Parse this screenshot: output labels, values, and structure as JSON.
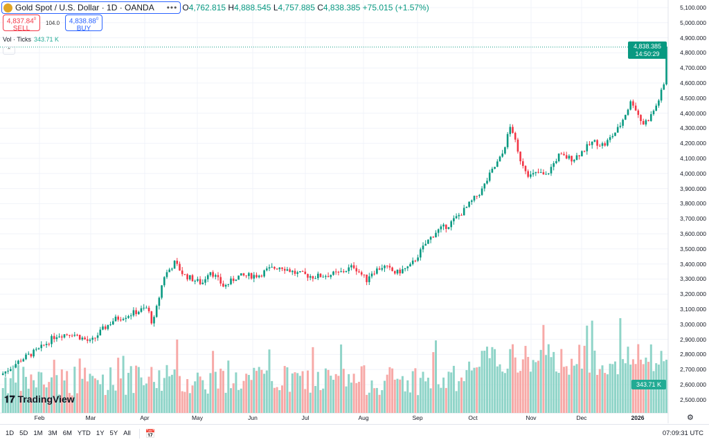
{
  "header": {
    "symbol": "Gold Spot / U.S. Dollar · 1D · OANDA",
    "open_label": "O",
    "open": "4,762.815",
    "high_label": "H",
    "high": "4,888.545",
    "low_label": "L",
    "low": "4,757.885",
    "close_label": "C",
    "close": "4,838.385",
    "change": "+75.015 (+1.57%)",
    "more": "•••"
  },
  "trade": {
    "sell_price": "4,837.84",
    "sell_sup": "0",
    "sell_label": "SELL",
    "spread": "104.0",
    "buy_price": "4,838.88",
    "buy_sup": "0",
    "buy_label": "BUY"
  },
  "volume_indicator": {
    "label": "Vol · Ticks",
    "value": "343.71 K"
  },
  "price_tag": {
    "price": "4,838.385",
    "countdown": "14:50:29"
  },
  "logo": "TradingView",
  "toolbar": {
    "ranges": [
      "1D",
      "5D",
      "1M",
      "3M",
      "6M",
      "YTD",
      "1Y",
      "5Y",
      "All"
    ],
    "time": "07:09:31 UTC"
  },
  "colors": {
    "up": "#089981",
    "down": "#f23645",
    "vol_up": "#8fd4c8",
    "vol_down": "#f7a9a7"
  },
  "chart_data": {
    "type": "candlestick",
    "y_ticks": [
      "5,100.000",
      "5,000.000",
      "4,900.000",
      "4,800.000",
      "4,700.000",
      "4,600.000",
      "4,500.000",
      "4,400.000",
      "4,300.000",
      "4,200.000",
      "4,100.000",
      "4,000.000",
      "3,900.000",
      "3,800.000",
      "3,700.000",
      "3,600.000",
      "3,500.000",
      "3,400.000",
      "3,300.000",
      "3,200.000",
      "3,100.000",
      "3,000.000",
      "2,900.000",
      "2,800.000",
      "2,700.000",
      "2,600.000",
      "2,500.000"
    ],
    "ylim": [
      2500,
      5100
    ],
    "x_ticks": [
      "Feb",
      "Mar",
      "Apr",
      "May",
      "Jun",
      "Jul",
      "Aug",
      "Sep",
      "Oct",
      "Nov",
      "Dec",
      "2026"
    ],
    "grid": true,
    "approx_closes": [
      [
        "2025-01-12",
        2674
      ],
      [
        "2025-01-22",
        2766
      ],
      [
        "2025-02-01",
        2835
      ],
      [
        "2025-02-10",
        2927
      ],
      [
        "2025-02-19",
        2940
      ],
      [
        "2025-03-01",
        2880
      ],
      [
        "2025-03-07",
        2959
      ],
      [
        "2025-03-14",
        3032
      ],
      [
        "2025-03-22",
        3064
      ],
      [
        "2025-04-01",
        3110
      ],
      [
        "2025-04-04",
        2995
      ],
      [
        "2025-04-10",
        3316
      ],
      [
        "2025-04-16",
        3408
      ],
      [
        "2025-04-21",
        3326
      ],
      [
        "2025-05-01",
        3270
      ],
      [
        "2025-05-05",
        3362
      ],
      [
        "2025-05-13",
        3248
      ],
      [
        "2025-05-20",
        3316
      ],
      [
        "2025-06-01",
        3326
      ],
      [
        "2025-06-06",
        3362
      ],
      [
        "2025-06-13",
        3385
      ],
      [
        "2025-06-21",
        3339
      ],
      [
        "2025-07-01",
        3316
      ],
      [
        "2025-07-08",
        3326
      ],
      [
        "2025-07-15",
        3339
      ],
      [
        "2025-07-23",
        3385
      ],
      [
        "2025-07-30",
        3294
      ],
      [
        "2025-08-01",
        3339
      ],
      [
        "2025-08-08",
        3385
      ],
      [
        "2025-08-15",
        3339
      ],
      [
        "2025-08-23",
        3385
      ],
      [
        "2025-09-01",
        3546
      ],
      [
        "2025-09-06",
        3615
      ],
      [
        "2025-09-13",
        3661
      ],
      [
        "2025-09-21",
        3752
      ],
      [
        "2025-10-01",
        3890
      ],
      [
        "2025-10-06",
        4005
      ],
      [
        "2025-10-12",
        4119
      ],
      [
        "2025-10-17",
        4326
      ],
      [
        "2025-10-21",
        4119
      ],
      [
        "2025-10-27",
        3982
      ],
      [
        "2025-11-01",
        4005
      ],
      [
        "2025-11-05",
        3982
      ],
      [
        "2025-11-12",
        4119
      ],
      [
        "2025-11-20",
        4096
      ],
      [
        "2025-12-01",
        4211
      ],
      [
        "2025-12-07",
        4188
      ],
      [
        "2025-12-15",
        4303
      ],
      [
        "2025-12-22",
        4486
      ],
      [
        "2025-12-28",
        4326
      ],
      [
        "2026-01-01",
        4372
      ],
      [
        "2026-01-05",
        4463
      ],
      [
        "2026-01-09",
        4601
      ],
      [
        "2026-01-12",
        4601
      ],
      [
        "2026-01-16",
        4838.385
      ]
    ],
    "last_volume": "343.71 K"
  }
}
